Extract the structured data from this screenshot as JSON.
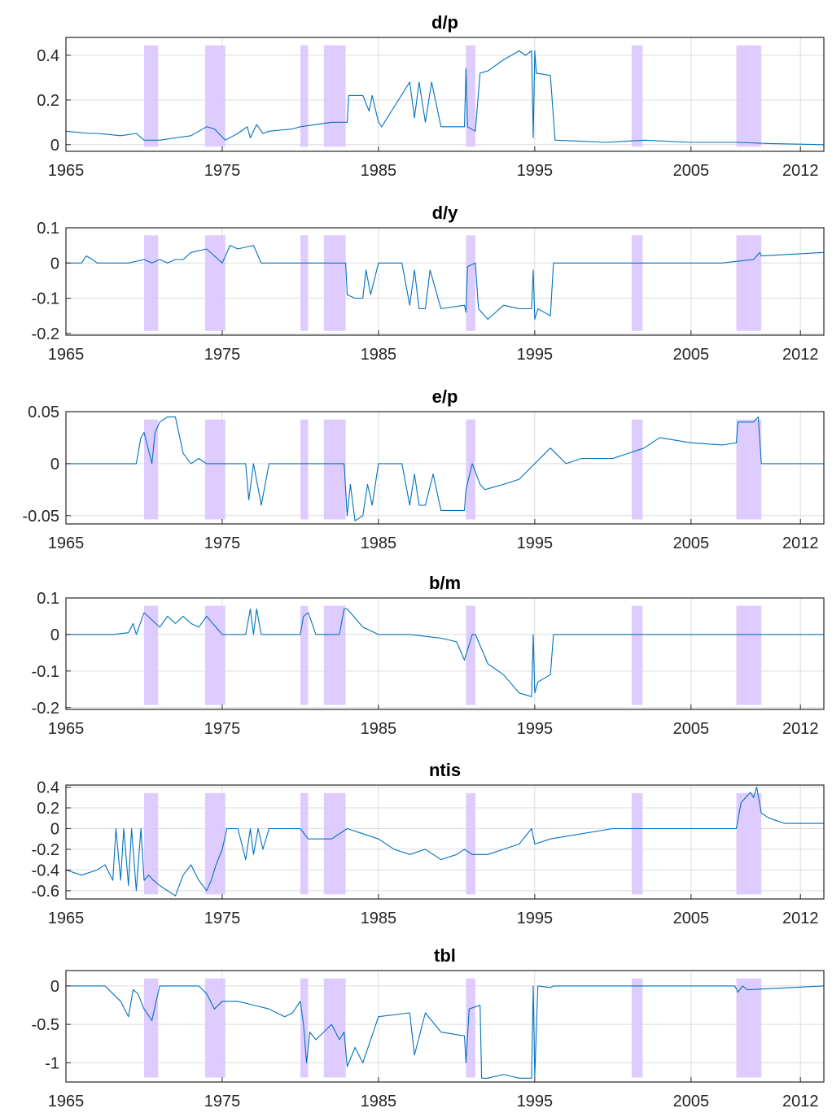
{
  "chart_data": {
    "type": "line",
    "colors": {
      "series": "#0072bd",
      "recession": "#dcc6ff",
      "grid": "#dcdcdc"
    },
    "grid": true,
    "shaded_periods": [
      [
        1970.0,
        1970.9
      ],
      [
        1973.9,
        1975.2
      ],
      [
        1980.0,
        1980.5
      ],
      [
        1981.5,
        1982.9
      ],
      [
        1990.6,
        1991.2
      ],
      [
        2001.2,
        2001.9
      ],
      [
        2007.9,
        2009.5
      ]
    ],
    "panels": [
      {
        "title": "d/p",
        "xlim": [
          1965,
          2013.5
        ],
        "x_ticks": [
          1965,
          1975,
          1985,
          1995,
          2005,
          2012
        ],
        "x_tick_labels": [
          "1965",
          "1975",
          "1985",
          "1995",
          "2005",
          "2012"
        ],
        "ylim": [
          -0.03,
          0.48
        ],
        "y_ticks": [
          0,
          0.2,
          0.4
        ],
        "y_tick_labels": [
          "0",
          "0.2",
          "0.4"
        ],
        "x": [
          1965.0,
          1966.5,
          1967.0,
          1968.5,
          1969.5,
          1970.0,
          1971.0,
          1972.0,
          1973.0,
          1974.0,
          1974.5,
          1975.2,
          1976.0,
          1976.6,
          1976.8,
          1977.2,
          1977.6,
          1978.0,
          1979.5,
          1980.0,
          1981.0,
          1982.0,
          1983.0,
          1983.1,
          1984.0,
          1984.4,
          1984.6,
          1985.0,
          1985.2,
          1987.0,
          1987.3,
          1987.6,
          1988.0,
          1988.4,
          1989.0,
          1990.5,
          1990.6,
          1990.7,
          1991.2,
          1991.5,
          1992.0,
          1993.0,
          1994.0,
          1994.4,
          1994.8,
          1994.9,
          1995.0,
          1995.1,
          1996.0,
          1996.3,
          1998.0,
          1999.5,
          2002.0,
          2005.0,
          2008.0,
          2010.0,
          2013.5
        ],
        "y": [
          0.06,
          0.05,
          0.05,
          0.04,
          0.05,
          0.02,
          0.02,
          0.03,
          0.04,
          0.08,
          0.07,
          0.02,
          0.05,
          0.08,
          0.03,
          0.09,
          0.05,
          0.06,
          0.07,
          0.08,
          0.09,
          0.1,
          0.1,
          0.22,
          0.22,
          0.15,
          0.22,
          0.1,
          0.08,
          0.28,
          0.12,
          0.28,
          0.1,
          0.28,
          0.08,
          0.08,
          0.34,
          0.08,
          0.06,
          0.32,
          0.33,
          0.38,
          0.42,
          0.4,
          0.42,
          0.03,
          0.42,
          0.32,
          0.31,
          0.02,
          0.015,
          0.01,
          0.02,
          0.01,
          0.01,
          0.005,
          0.0
        ]
      },
      {
        "title": "d/y",
        "xlim": [
          1965,
          2013.5
        ],
        "x_ticks": [
          1965,
          1975,
          1985,
          1995,
          2005,
          2012
        ],
        "x_tick_labels": [
          "1965",
          "1975",
          "1985",
          "1995",
          "2005",
          "2012"
        ],
        "ylim": [
          -0.205,
          0.1
        ],
        "y_ticks": [
          -0.2,
          -0.1,
          0,
          0.1
        ],
        "y_tick_labels": [
          "-0.2",
          "-0.1",
          "0",
          "0.1"
        ],
        "x": [
          1965.0,
          1966.0,
          1966.3,
          1966.7,
          1967.0,
          1969.0,
          1970.0,
          1970.5,
          1971.0,
          1971.5,
          1972.0,
          1972.5,
          1973.0,
          1974.0,
          1974.5,
          1975.0,
          1975.5,
          1976.0,
          1977.0,
          1977.3,
          1977.5,
          1982.9,
          1983.0,
          1983.5,
          1984.0,
          1984.2,
          1984.5,
          1985.0,
          1986.5,
          1987.0,
          1987.3,
          1987.6,
          1988.0,
          1988.3,
          1989.0,
          1990.5,
          1990.6,
          1990.7,
          1991.2,
          1991.4,
          1992.0,
          1993.0,
          1994.0,
          1994.8,
          1994.9,
          1995.0,
          1995.2,
          1996.0,
          1996.2,
          2001.0,
          2005.0,
          2007.0,
          2008.0,
          2009.0,
          2009.4,
          2009.5,
          2013.5
        ],
        "y": [
          0,
          0,
          0.02,
          0.01,
          0,
          0,
          0.01,
          0,
          0.01,
          0,
          0.01,
          0.01,
          0.03,
          0.04,
          0.02,
          0,
          0.05,
          0.04,
          0.05,
          0.02,
          0,
          0,
          -0.09,
          -0.1,
          -0.1,
          -0.02,
          -0.09,
          0,
          0,
          -0.12,
          -0.02,
          -0.13,
          -0.13,
          -0.02,
          -0.13,
          -0.12,
          -0.14,
          -0.01,
          0,
          -0.13,
          -0.16,
          -0.12,
          -0.13,
          -0.13,
          -0.02,
          -0.16,
          -0.13,
          -0.15,
          0,
          0,
          0,
          0,
          0.005,
          0.01,
          0.03,
          0.02,
          0.03
        ]
      },
      {
        "title": "e/p",
        "xlim": [
          1965,
          2013.5
        ],
        "x_ticks": [
          1965,
          1975,
          1985,
          1995,
          2005,
          2012
        ],
        "x_tick_labels": [
          "1965",
          "1975",
          "1985",
          "1995",
          "2005",
          "2012"
        ],
        "ylim": [
          -0.058,
          0.05
        ],
        "y_ticks": [
          -0.05,
          0,
          0.05
        ],
        "y_tick_labels": [
          "-0.05",
          "0",
          "0.05"
        ],
        "x": [
          1965.0,
          1969.5,
          1969.8,
          1970.0,
          1970.5,
          1970.7,
          1971.0,
          1971.5,
          1972.0,
          1972.5,
          1973.0,
          1973.5,
          1974.0,
          1976.5,
          1976.7,
          1977.0,
          1977.5,
          1978.0,
          1982.8,
          1983.0,
          1983.2,
          1983.5,
          1984.0,
          1984.3,
          1984.6,
          1985.0,
          1986.5,
          1987.0,
          1987.3,
          1987.6,
          1988.0,
          1988.5,
          1989.0,
          1990.5,
          1990.6,
          1991.0,
          1991.5,
          1991.8,
          1993.0,
          1994.0,
          1995.0,
          1996.0,
          1997.0,
          1998.0,
          2000.0,
          2001.0,
          2002.0,
          2003.0,
          2005.0,
          2007.0,
          2007.9,
          2008.0,
          2009.0,
          2009.3,
          2009.5,
          2013.5
        ],
        "y": [
          0,
          0,
          0.025,
          0.03,
          0,
          0.03,
          0.04,
          0.045,
          0.045,
          0.01,
          0,
          0.005,
          0,
          0,
          -0.035,
          0,
          -0.04,
          0,
          0,
          -0.05,
          -0.02,
          -0.055,
          -0.05,
          -0.02,
          -0.04,
          0,
          0,
          -0.04,
          -0.01,
          -0.04,
          -0.04,
          -0.01,
          -0.045,
          -0.045,
          -0.025,
          0,
          -0.02,
          -0.025,
          -0.02,
          -0.015,
          0,
          0.015,
          0,
          0.005,
          0.005,
          0.01,
          0.015,
          0.025,
          0.02,
          0.018,
          0.02,
          0.04,
          0.04,
          0.045,
          0,
          0
        ]
      },
      {
        "title": "b/m",
        "xlim": [
          1965,
          2013.5
        ],
        "x_ticks": [
          1965,
          1975,
          1985,
          1995,
          2005,
          2012
        ],
        "x_tick_labels": [
          "1965",
          "1975",
          "1985",
          "1995",
          "2005",
          "2012"
        ],
        "ylim": [
          -0.205,
          0.1
        ],
        "y_ticks": [
          -0.2,
          -0.1,
          0,
          0.1
        ],
        "y_tick_labels": [
          "-0.2",
          "-0.1",
          "0",
          "0.1"
        ],
        "x": [
          1965.0,
          1968.0,
          1969.0,
          1969.3,
          1969.5,
          1970.0,
          1970.5,
          1971.0,
          1971.5,
          1972.0,
          1972.5,
          1973.0,
          1973.5,
          1974.0,
          1975.0,
          1976.5,
          1976.8,
          1977.0,
          1977.2,
          1977.5,
          1978.0,
          1980.0,
          1980.2,
          1980.5,
          1981.0,
          1982.5,
          1982.8,
          1983.0,
          1984.0,
          1985.0,
          1987.0,
          1988.0,
          1989.0,
          1990.0,
          1990.5,
          1991.0,
          1991.2,
          1992.0,
          1993.0,
          1994.0,
          1994.8,
          1994.9,
          1995.0,
          1995.2,
          1996.0,
          1996.2,
          2013.5
        ],
        "y": [
          0,
          0,
          0.005,
          0.03,
          0,
          0.06,
          0.04,
          0.02,
          0.05,
          0.03,
          0.05,
          0.03,
          0.02,
          0.05,
          0,
          0,
          0.07,
          0,
          0.07,
          0,
          0,
          0,
          0.05,
          0.06,
          0,
          0,
          0.07,
          0.07,
          0.02,
          0,
          0,
          -0.005,
          -0.01,
          -0.02,
          -0.07,
          0,
          0,
          -0.08,
          -0.11,
          -0.16,
          -0.17,
          0,
          -0.16,
          -0.13,
          -0.11,
          0,
          0
        ]
      },
      {
        "title": "ntis",
        "xlim": [
          1965,
          2013.5
        ],
        "x_ticks": [
          1965,
          1975,
          1985,
          1995,
          2005,
          2012
        ],
        "x_tick_labels": [
          "1965",
          "1975",
          "1985",
          "1995",
          "2005",
          "2012"
        ],
        "ylim": [
          -0.68,
          0.42
        ],
        "y_ticks": [
          -0.6,
          -0.4,
          -0.2,
          0,
          0.2,
          0.4
        ],
        "y_tick_labels": [
          "-0.6",
          "-0.4",
          "-0.2",
          "0",
          "0.2",
          "0.4"
        ],
        "x": [
          1965.0,
          1966.0,
          1967.0,
          1967.5,
          1968.0,
          1968.2,
          1968.5,
          1968.7,
          1969.0,
          1969.2,
          1969.5,
          1969.8,
          1970.0,
          1970.3,
          1970.6,
          1971.0,
          1972.0,
          1972.5,
          1973.0,
          1973.5,
          1974.0,
          1974.3,
          1974.6,
          1975.0,
          1975.3,
          1976.0,
          1976.5,
          1976.8,
          1977.0,
          1977.3,
          1977.6,
          1978.0,
          1980.0,
          1980.5,
          1981.0,
          1982.0,
          1983.0,
          1984.0,
          1985.0,
          1986.0,
          1987.0,
          1988.0,
          1989.0,
          1990.0,
          1990.5,
          1991.0,
          1992.0,
          1993.0,
          1994.0,
          1994.8,
          1995.0,
          1996.0,
          1998.0,
          2000.0,
          2001.0,
          2007.9,
          2008.2,
          2008.5,
          2008.8,
          2009.0,
          2009.2,
          2009.5,
          2010.0,
          2011.0,
          2012.0,
          2013.5
        ],
        "y": [
          -0.4,
          -0.45,
          -0.4,
          -0.35,
          -0.5,
          0,
          -0.5,
          0,
          -0.55,
          0,
          -0.6,
          0,
          -0.5,
          -0.45,
          -0.5,
          -0.55,
          -0.65,
          -0.45,
          -0.35,
          -0.5,
          -0.6,
          -0.5,
          -0.35,
          -0.2,
          0,
          0,
          -0.3,
          0,
          -0.25,
          0,
          -0.2,
          0,
          0,
          -0.1,
          -0.1,
          -0.1,
          0,
          -0.05,
          -0.1,
          -0.2,
          -0.25,
          -0.2,
          -0.3,
          -0.25,
          -0.2,
          -0.25,
          -0.25,
          -0.2,
          -0.15,
          0,
          -0.15,
          -0.1,
          -0.05,
          0,
          0,
          0,
          0.25,
          0.3,
          0.35,
          0.3,
          0.4,
          0.15,
          0.1,
          0.05,
          0.05,
          0.05
        ]
      },
      {
        "title": "tbl",
        "xlim": [
          1965,
          2013.5
        ],
        "x_ticks": [
          1965,
          1975,
          1985,
          1995,
          2005,
          2012
        ],
        "x_tick_labels": [
          "1965",
          "1975",
          "1985",
          "1995",
          "2005",
          "2012"
        ],
        "ylim": [
          -1.25,
          0.2
        ],
        "y_ticks": [
          -1,
          -0.5,
          0
        ],
        "y_tick_labels": [
          "-1",
          "-0.5",
          "0"
        ],
        "x": [
          1965.0,
          1967.5,
          1968.0,
          1968.5,
          1969.0,
          1969.3,
          1969.6,
          1970.0,
          1970.5,
          1971.0,
          1972.0,
          1973.5,
          1974.0,
          1974.5,
          1975.0,
          1976.0,
          1977.0,
          1978.0,
          1979.0,
          1979.5,
          1980.0,
          1980.2,
          1980.4,
          1980.6,
          1981.0,
          1981.5,
          1982.0,
          1982.5,
          1982.8,
          1983.0,
          1983.5,
          1984.0,
          1985.0,
          1987.0,
          1987.3,
          1988.0,
          1989.0,
          1990.5,
          1990.6,
          1990.8,
          1991.5,
          1991.6,
          1992.0,
          1993.0,
          1994.0,
          1994.8,
          1994.9,
          1995.0,
          1995.2,
          1996.0,
          1996.2,
          2007.8,
          2008.0,
          2008.3,
          2008.6,
          2013.5
        ],
        "y": [
          0,
          0,
          -0.1,
          -0.2,
          -0.4,
          -0.05,
          -0.1,
          -0.3,
          -0.45,
          0,
          0,
          0,
          -0.1,
          -0.3,
          -0.2,
          -0.2,
          -0.25,
          -0.3,
          -0.4,
          -0.35,
          -0.2,
          -0.5,
          -1.0,
          -0.6,
          -0.7,
          -0.6,
          -0.5,
          -0.7,
          -0.6,
          -1.05,
          -0.8,
          -1.0,
          -0.4,
          -0.35,
          -0.9,
          -0.35,
          -0.6,
          -0.65,
          -1.0,
          -0.3,
          -0.25,
          -1.2,
          -1.2,
          -1.15,
          -1.2,
          -1.2,
          0,
          -1.18,
          0,
          -0.02,
          0,
          0,
          -0.08,
          0,
          -0.05,
          0
        ]
      }
    ]
  }
}
